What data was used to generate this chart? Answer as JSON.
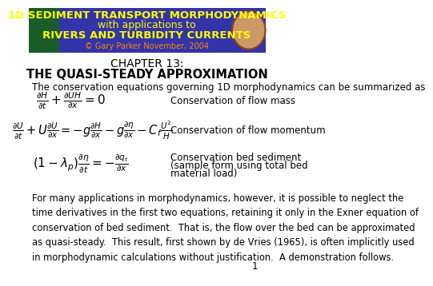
{
  "header_bg_color": "#3333AA",
  "header_text_color": "#FFFF00",
  "header_line1": "1D SEDIMENT TRANSPORT MORPHODYNAMICS",
  "header_line2": "with applications to",
  "header_line3": "RIVERS AND TURBIDITY CURRENTS",
  "header_line4": "© Gary Parker November, 2004",
  "header_line4_color": "#FF8800",
  "chapter_title1": "CHAPTER 13:",
  "chapter_title2": "THE QUASI-STEADY APPROXIMATION",
  "intro_text": "The conservation equations governing 1D morphodynamics can be summarized as",
  "eq1_label": "Conservation of flow mass",
  "eq2_label": "Conservation of flow momentum",
  "eq3_label1": "Conservation bed sediment",
  "eq3_label2": "(sample form using total bed",
  "eq3_label3": "material load)",
  "body_lines": [
    "For many applications in morphodynamics, however, it is possible to neglect the",
    "time derivatives in the first two equations, retaining it only in the Exner equation of",
    "conservation of bed sediment.  That is, the flow over the bed can be approximated",
    "as quasi-steady.  This result, first shown by de Vries (1965), is often implicitly used",
    "in morphodynamic calculations without justification.  A demonstration follows."
  ],
  "page_number": "1",
  "bg_color": "#FFFFFF",
  "text_color": "#000000",
  "header_font_size": 9.5,
  "title_font_size": 10,
  "body_font_size": 8.5,
  "eq_font_size": 11,
  "left_img_color": "#1a5c2a",
  "circle_color": "#cc9966",
  "circle_edge": "#8B4513"
}
